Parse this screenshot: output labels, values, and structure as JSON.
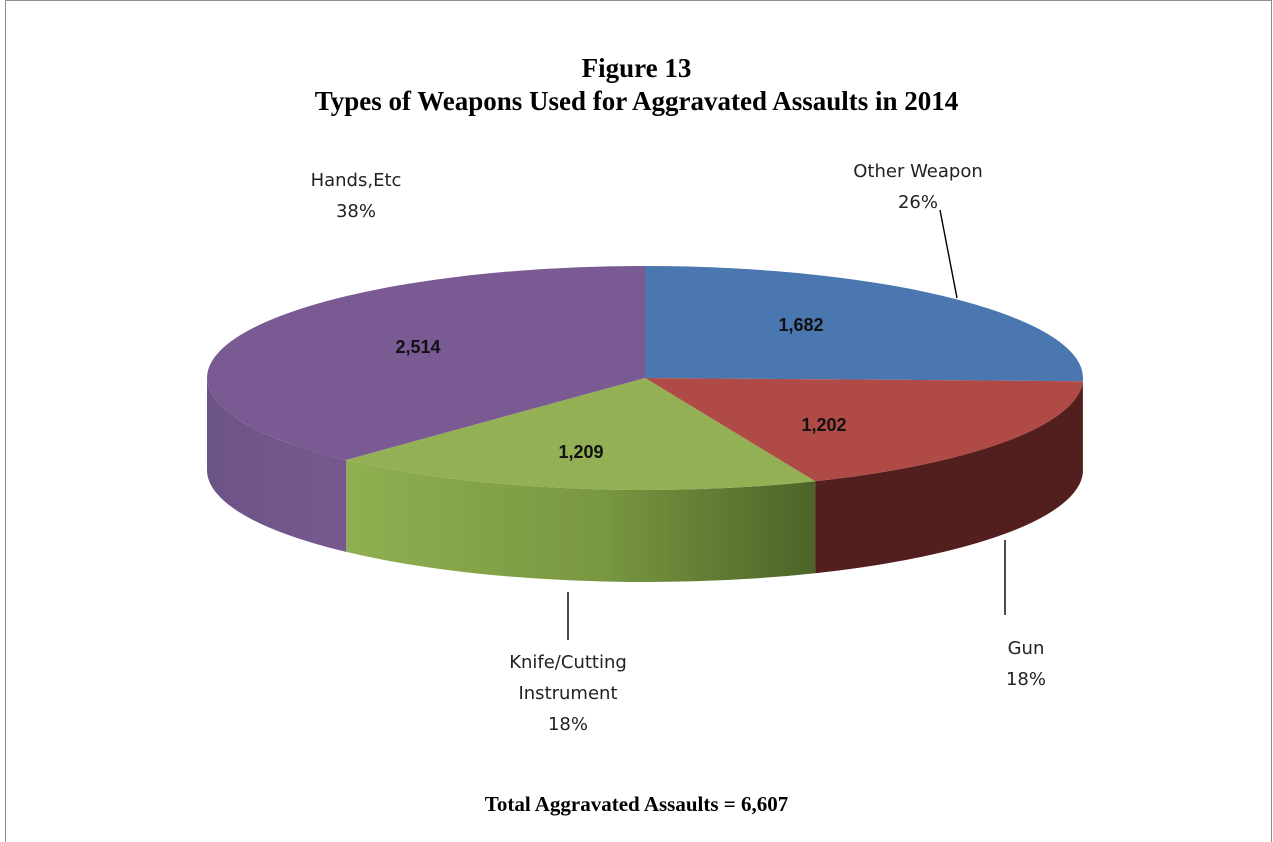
{
  "header": {
    "title_line1": "Figure 13",
    "title_line2": "Types of Weapons Used for Aggravated Assaults in 2014"
  },
  "footer": {
    "total_text": "Total Aggravated Assaults = 6,607"
  },
  "chart_data": {
    "type": "pie",
    "style": "3d",
    "title": "Figure 13 Types of Weapons Used for Aggravated Assaults in 2014",
    "total": 6607,
    "slices": [
      {
        "name": "Other Weapon",
        "value": 1682,
        "value_label": "1,682",
        "percent_label": "26%",
        "color": "#4a77b0",
        "side_color": "#2f5686"
      },
      {
        "name": "Gun",
        "value": 1202,
        "value_label": "1,202",
        "percent_label": "18%",
        "color": "#b04a47",
        "side_color": "#521e1e"
      },
      {
        "name": "Knife/Cutting Instrument",
        "value": 1209,
        "value_label": "1,209",
        "percent_label": "18%",
        "color": "#93b054",
        "side_color": "#6e8a3b"
      },
      {
        "name": "Hands,Etc",
        "value": 2514,
        "value_label": "2,514",
        "percent_label": "38%",
        "color": "#795a93",
        "side_color": "#6c5386"
      }
    ],
    "start_angle_deg": 90,
    "direction": "clockwise",
    "legend": "none"
  }
}
